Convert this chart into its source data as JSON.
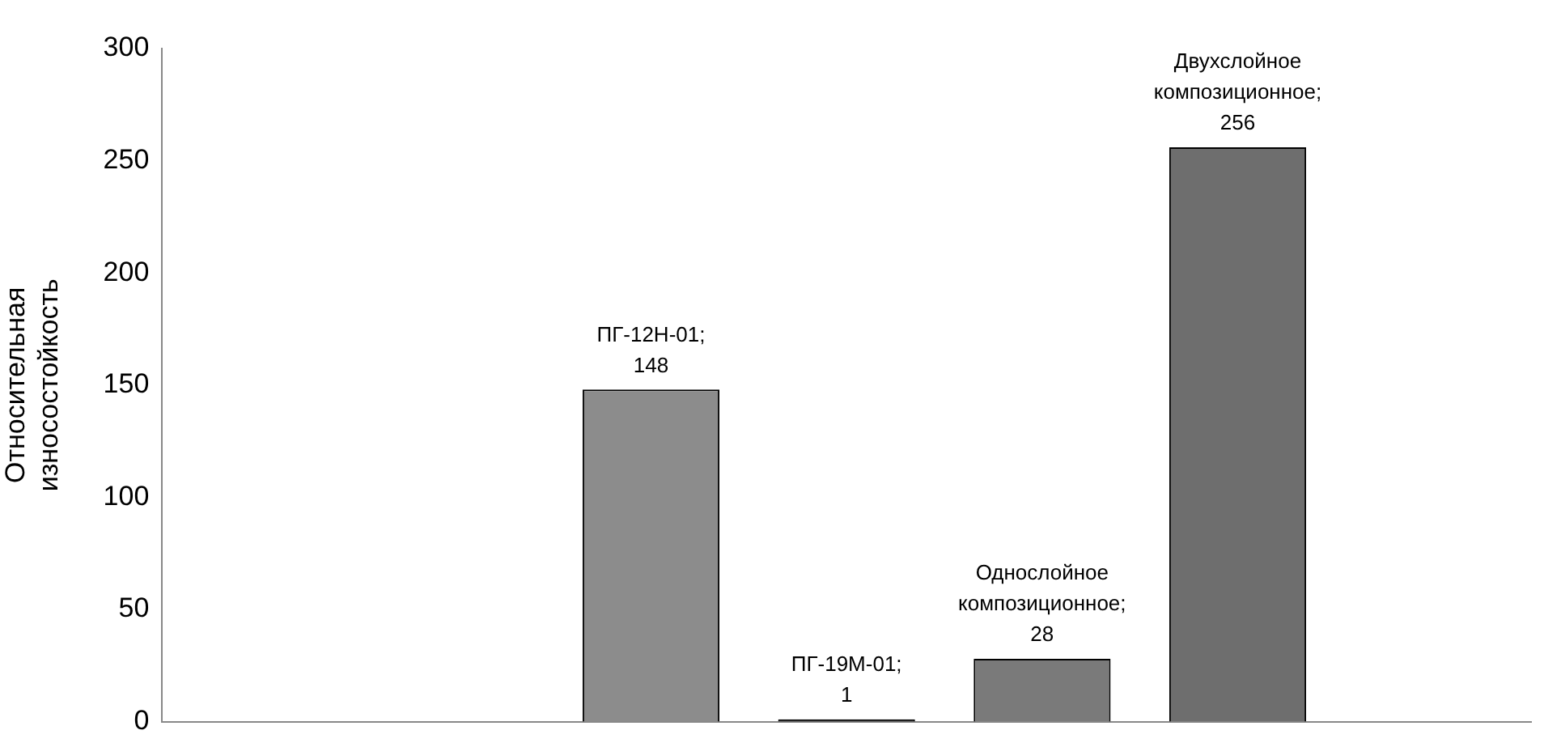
{
  "chart_data": {
    "type": "bar",
    "ylabel": "Относительная износостойкость",
    "categories": [
      null,
      null,
      null,
      null,
      null,
      null,
      null
    ],
    "values": [
      null,
      null,
      148,
      1,
      28,
      256,
      null
    ],
    "value_labels": [
      null,
      null,
      "ПГ-12Н-01; 148",
      "ПГ-19М-01; 1",
      "Однослойное композиционное; 28",
      "Двухслойное композиционное; 256",
      null
    ],
    "colors": [
      null,
      null,
      "#8c8c8c",
      "#000000",
      "#7a7a7a",
      "#6e6e6e",
      null
    ],
    "ylim": [
      0,
      300
    ],
    "yticks": [
      0,
      50,
      100,
      150,
      200,
      250,
      300
    ],
    "grid": false,
    "legend": false,
    "tick_labels": "y"
  }
}
